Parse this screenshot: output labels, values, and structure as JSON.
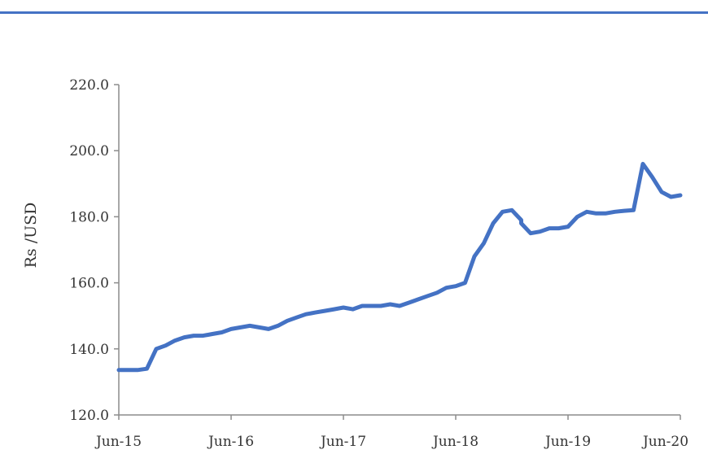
{
  "chart_data": {
    "type": "line",
    "title": "",
    "xlabel": "",
    "ylabel": "Rs /USD",
    "xlim": [
      "2015-06",
      "2020-06"
    ],
    "ylim": [
      120,
      220
    ],
    "grid": false,
    "legend": "none",
    "y_tick_labels": [
      "120.0",
      "140.0",
      "160.0",
      "180.0",
      "200.0",
      "220.0"
    ],
    "x_tick_labels": [
      "Jun-15",
      "Jun-16",
      "Jun-17",
      "Jun-18",
      "Jun-19",
      "Jun-20"
    ],
    "color": "#4472c4",
    "x": [
      "2015-06",
      "2015-07",
      "2015-08",
      "2015-09",
      "2015-10",
      "2015-11",
      "2015-12",
      "2016-01",
      "2016-02",
      "2016-03",
      "2016-04",
      "2016-05",
      "2016-06",
      "2016-07",
      "2016-08",
      "2016-09",
      "2016-10",
      "2016-11",
      "2016-12",
      "2017-01",
      "2017-02",
      "2017-03",
      "2017-04",
      "2017-05",
      "2017-06",
      "2017-07",
      "2017-08",
      "2017-09",
      "2017-10",
      "2017-11",
      "2017-12",
      "2018-01",
      "2018-02",
      "2018-03",
      "2018-04",
      "2018-05",
      "2018-06",
      "2018-07",
      "2018-08",
      "2018-09",
      "2018-10",
      "2018-11",
      "2018-12",
      "2019-01",
      "2019-01",
      "2019-02",
      "2019-03",
      "2019-04",
      "2019-05",
      "2019-06",
      "2019-07",
      "2019-08",
      "2019-09",
      "2019-10",
      "2019-11",
      "2019-12",
      "2020-01",
      "2020-02",
      "2020-03",
      "2020-04",
      "2020-05",
      "2020-06"
    ],
    "series": [
      {
        "values": [
          133.6,
          133.6,
          133.6,
          134.0,
          140.0,
          141.0,
          142.5,
          143.5,
          144.0,
          144.0,
          144.5,
          145.0,
          146.0,
          146.5,
          147.0,
          146.5,
          146.0,
          147.0,
          148.5,
          149.5,
          150.5,
          151.0,
          151.5,
          152.0,
          152.5,
          152.0,
          153.0,
          153.0,
          153.0,
          153.5,
          153.0,
          154.0,
          155.0,
          156.0,
          157.0,
          158.5,
          159.0,
          160.0,
          168.0,
          172.0,
          178.0,
          181.5,
          182.0,
          179.0,
          178.0,
          175.0,
          175.5,
          176.5,
          176.5,
          177.0,
          180.0,
          181.5,
          181.0,
          181.0,
          181.5,
          181.8,
          182.0,
          196.0,
          192.0,
          187.5,
          186.0,
          186.5
        ]
      }
    ]
  }
}
